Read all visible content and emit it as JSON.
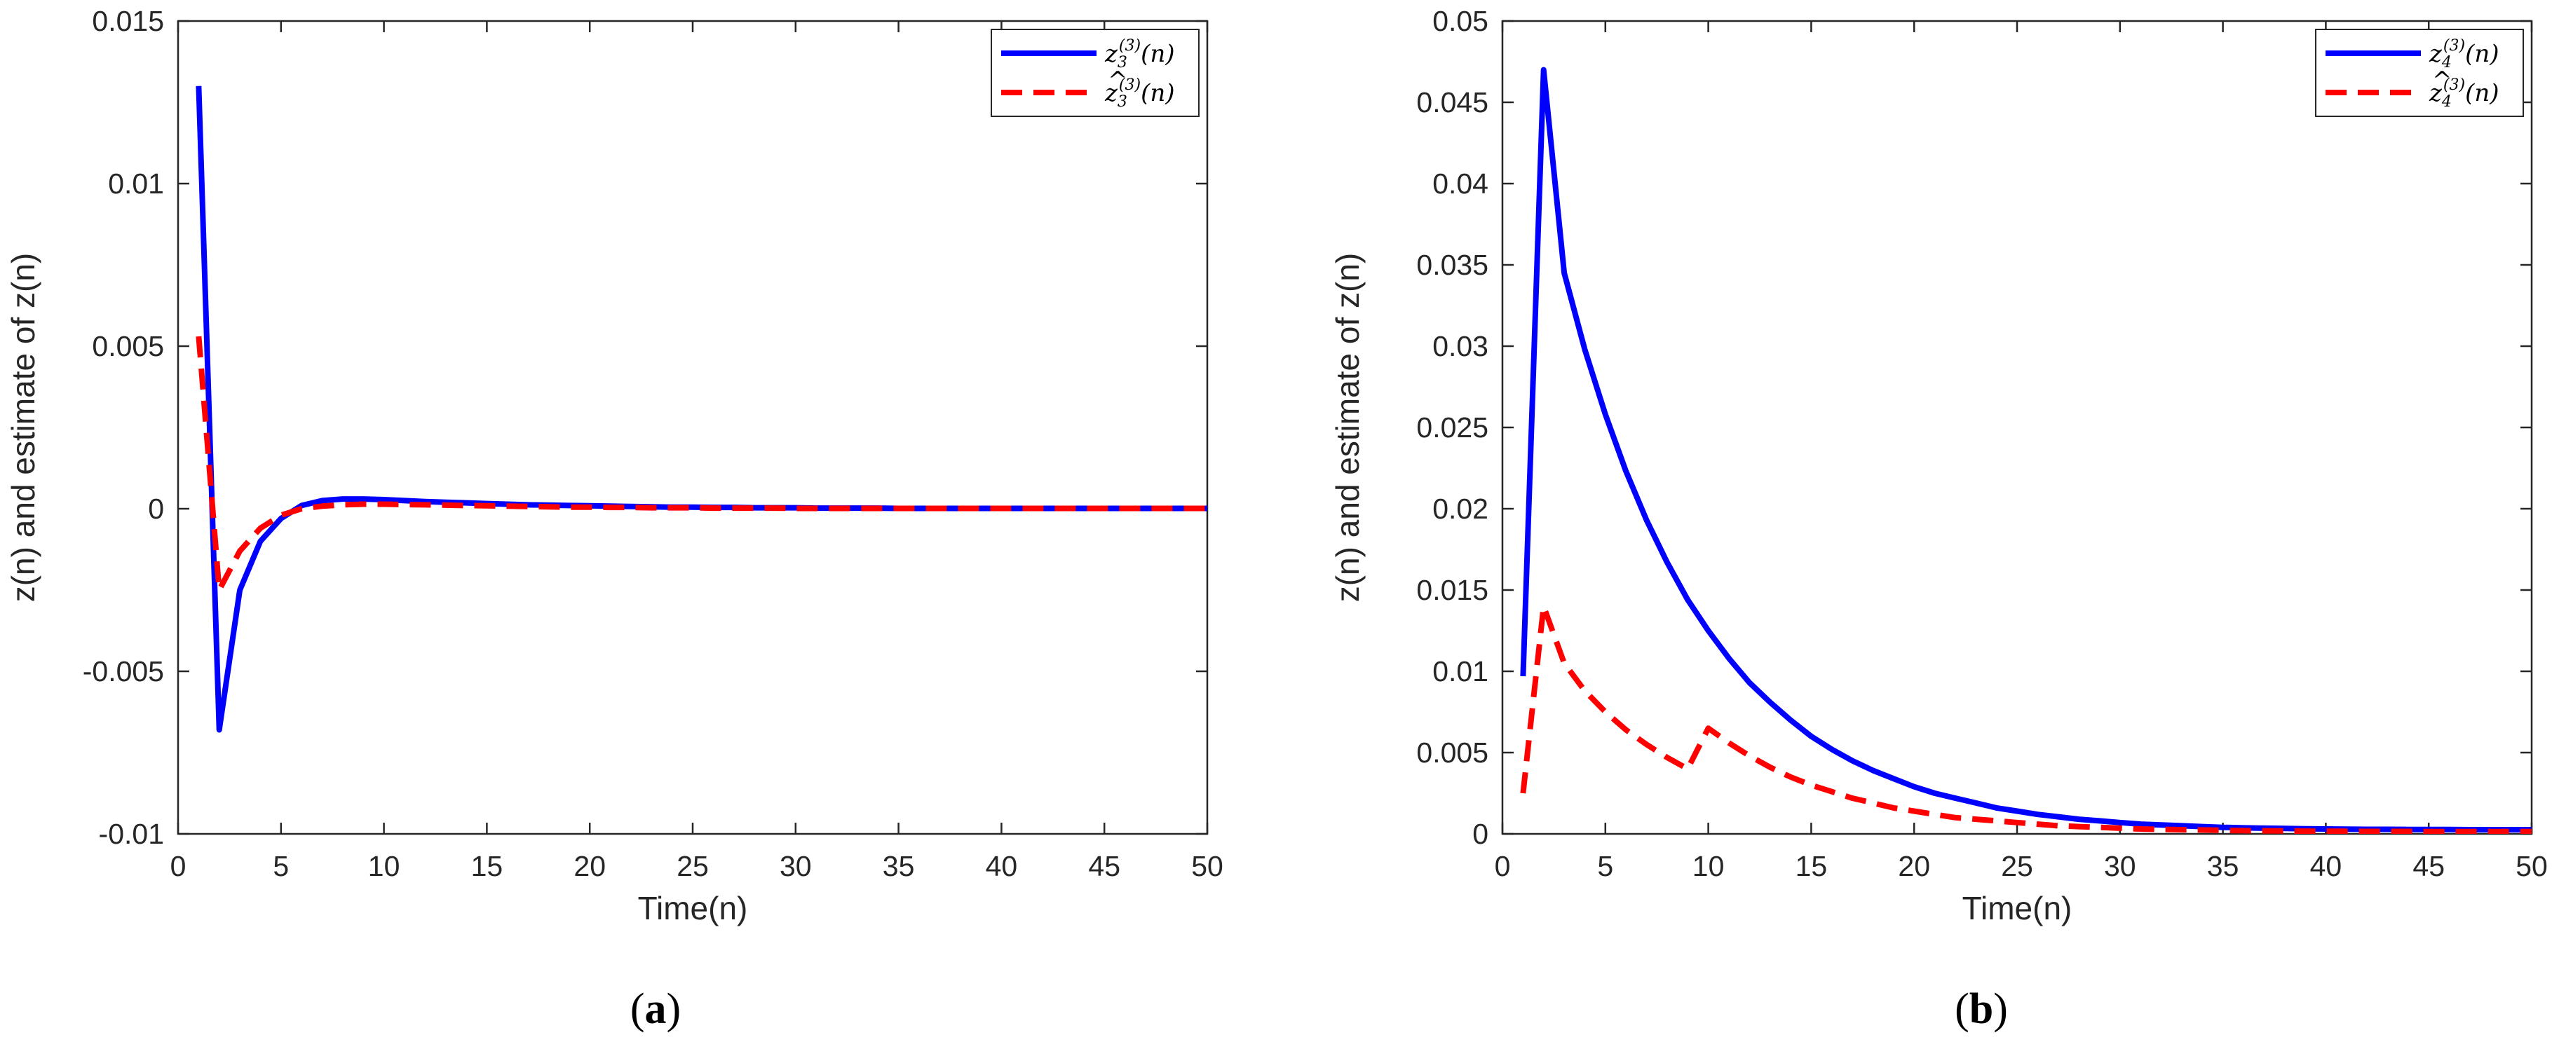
{
  "chart_data": [
    {
      "type": "line",
      "caption_letter": "a",
      "xlabel": "Time(n)",
      "ylabel": "z(n) and estimate of z(n)",
      "xlim": [
        0,
        50
      ],
      "ylim": [
        -0.01,
        0.015
      ],
      "xticks": [
        0,
        5,
        10,
        15,
        20,
        25,
        30,
        35,
        40,
        45,
        50
      ],
      "xtick_labels": [
        "0",
        "5",
        "10",
        "15",
        "20",
        "25",
        "30",
        "35",
        "40",
        "45",
        "50"
      ],
      "yticks": [
        -0.01,
        -0.005,
        0,
        0.005,
        0.01,
        0.015
      ],
      "ytick_labels": [
        "-0.01",
        "-0.005",
        "0",
        "0.005",
        "0.01",
        "0.015"
      ],
      "grid": false,
      "legend_position": "top-right",
      "series": [
        {
          "name": "z3(3)(n)",
          "legend_base": "z",
          "legend_sub": "3",
          "legend_sup": "(3)",
          "legend_tail": "(n)",
          "hat": false,
          "color": "#0000ff",
          "style": "solid",
          "x": [
            1,
            2,
            3,
            4,
            5,
            6,
            7,
            8,
            9,
            10,
            11,
            12,
            13,
            14,
            15,
            16,
            17,
            18,
            19,
            20,
            21,
            22,
            23,
            24,
            25,
            26,
            27,
            28,
            29,
            30,
            31,
            32,
            33,
            34,
            35,
            36,
            37,
            38,
            39,
            40,
            41,
            42,
            43,
            44,
            45,
            46,
            47,
            48,
            49,
            50
          ],
          "y": [
            0.013,
            -0.0068,
            -0.0025,
            -0.001,
            -0.0003,
            0.0001,
            0.00025,
            0.0003,
            0.0003,
            0.00028,
            0.00025,
            0.00022,
            0.0002,
            0.00018,
            0.00016,
            0.00014,
            0.00012,
            0.00011,
            0.0001,
            9e-05,
            8e-05,
            7e-05,
            6e-05,
            5e-05,
            5e-05,
            4e-05,
            4e-05,
            3e-05,
            3e-05,
            3e-05,
            2e-05,
            2e-05,
            2e-05,
            2e-05,
            1e-05,
            1e-05,
            1e-05,
            1e-05,
            1e-05,
            1e-05,
            1e-05,
            1e-05,
            1e-05,
            1e-05,
            1e-05,
            1e-05,
            1e-05,
            1e-05,
            1e-05,
            1e-05
          ]
        },
        {
          "name": "ẑ3(3)(n)",
          "legend_base": "z",
          "legend_sub": "3",
          "legend_sup": "(3)",
          "legend_tail": "(n)",
          "hat": true,
          "color": "#ff0000",
          "style": "dashed",
          "x": [
            1,
            2,
            3,
            4,
            5,
            6,
            7,
            8,
            9,
            10,
            11,
            12,
            13,
            14,
            15,
            16,
            17,
            18,
            19,
            20,
            21,
            22,
            23,
            24,
            25,
            26,
            27,
            28,
            29,
            30,
            31,
            32,
            33,
            34,
            35,
            36,
            37,
            38,
            39,
            40,
            41,
            42,
            43,
            44,
            45,
            46,
            47,
            48,
            49,
            50
          ],
          "y": [
            0.0053,
            -0.0025,
            -0.0013,
            -0.0006,
            -0.0002,
            0.0,
            8e-05,
            0.00012,
            0.00014,
            0.00014,
            0.00013,
            0.00012,
            0.00011,
            0.0001,
            9e-05,
            8e-05,
            7e-05,
            6e-05,
            5e-05,
            5e-05,
            4e-05,
            4e-05,
            3e-05,
            3e-05,
            3e-05,
            2e-05,
            2e-05,
            2e-05,
            2e-05,
            1e-05,
            1e-05,
            1e-05,
            1e-05,
            1e-05,
            1e-05,
            1e-05,
            1e-05,
            1e-05,
            1e-05,
            1e-05,
            1e-05,
            1e-05,
            1e-05,
            1e-05,
            1e-05,
            1e-05,
            1e-05,
            1e-05,
            1e-05,
            1e-05
          ]
        }
      ]
    },
    {
      "type": "line",
      "caption_letter": "b",
      "xlabel": "Time(n)",
      "ylabel": "z(n) and estimate of z(n)",
      "xlim": [
        0,
        50
      ],
      "ylim": [
        0,
        0.05
      ],
      "xticks": [
        0,
        5,
        10,
        15,
        20,
        25,
        30,
        35,
        40,
        45,
        50
      ],
      "xtick_labels": [
        "0",
        "5",
        "10",
        "15",
        "20",
        "25",
        "30",
        "35",
        "40",
        "45",
        "50"
      ],
      "yticks": [
        0,
        0.005,
        0.01,
        0.015,
        0.02,
        0.025,
        0.03,
        0.035,
        0.04,
        0.045,
        0.05
      ],
      "ytick_labels": [
        "0",
        "0.005",
        "0.01",
        "0.015",
        "0.02",
        "0.025",
        "0.03",
        "0.035",
        "0.04",
        "0.045",
        "0.05"
      ],
      "grid": false,
      "legend_position": "top-right",
      "series": [
        {
          "name": "z4(3)(n)",
          "legend_base": "z",
          "legend_sub": "4",
          "legend_sup": "(3)",
          "legend_tail": "(n)",
          "hat": false,
          "color": "#0000ff",
          "style": "solid",
          "x": [
            1,
            2,
            3,
            4,
            5,
            6,
            7,
            8,
            9,
            10,
            11,
            12,
            13,
            14,
            15,
            16,
            17,
            18,
            19,
            20,
            21,
            22,
            23,
            24,
            25,
            26,
            27,
            28,
            29,
            30,
            31,
            32,
            33,
            34,
            35,
            36,
            37,
            38,
            39,
            40,
            41,
            42,
            43,
            44,
            45,
            46,
            47,
            48,
            49,
            50
          ],
          "y": [
            0.0097,
            0.047,
            0.0345,
            0.0298,
            0.0258,
            0.0223,
            0.0193,
            0.0167,
            0.0144,
            0.0125,
            0.0108,
            0.0093,
            0.0081,
            0.007,
            0.006,
            0.0052,
            0.0045,
            0.0039,
            0.0034,
            0.0029,
            0.0025,
            0.0022,
            0.0019,
            0.0016,
            0.0014,
            0.0012,
            0.00105,
            0.0009,
            0.0008,
            0.0007,
            0.0006,
            0.00055,
            0.0005,
            0.00045,
            0.0004,
            0.00037,
            0.00035,
            0.00033,
            0.00031,
            0.0003,
            0.00029,
            0.00028,
            0.00028,
            0.00027,
            0.00027,
            0.00027,
            0.00026,
            0.00026,
            0.00026,
            0.00026
          ]
        },
        {
          "name": "ẑ4(3)(n)",
          "legend_base": "z",
          "legend_sub": "4",
          "legend_sup": "(3)",
          "legend_tail": "(n)",
          "hat": true,
          "color": "#ff0000",
          "style": "dashed",
          "x": [
            1,
            2,
            3,
            4,
            5,
            6,
            7,
            8,
            9,
            10,
            11,
            12,
            13,
            14,
            15,
            16,
            17,
            18,
            19,
            20,
            21,
            22,
            23,
            24,
            25,
            26,
            27,
            28,
            29,
            30,
            31,
            32,
            33,
            34,
            35,
            36,
            37,
            38,
            39,
            40,
            41,
            42,
            43,
            44,
            45,
            46,
            47,
            48,
            49,
            50
          ],
          "y": [
            0.0025,
            0.014,
            0.0105,
            0.0088,
            0.0075,
            0.0064,
            0.0055,
            0.0047,
            0.004,
            0.0065,
            0.0056,
            0.0048,
            0.0041,
            0.0035,
            0.003,
            0.0026,
            0.0022,
            0.0019,
            0.0016,
            0.0014,
            0.0012,
            0.001,
            0.0009,
            0.0008,
            0.0007,
            0.0006,
            0.0005,
            0.00045,
            0.0004,
            0.00035,
            0.0003,
            0.00028,
            0.00026,
            0.00024,
            0.00022,
            0.0002,
            0.00019,
            0.00018,
            0.00017,
            0.00016,
            0.00016,
            0.00015,
            0.00015,
            0.00015,
            0.00014,
            0.00014,
            0.00014,
            0.00014,
            0.00014,
            0.00014
          ]
        }
      ]
    }
  ]
}
